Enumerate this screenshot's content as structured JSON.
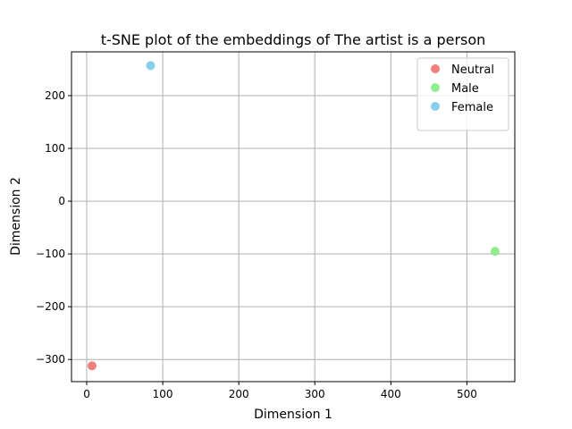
{
  "chart_data": {
    "type": "scatter",
    "title": "t-SNE plot of the embeddings of The artist is a person",
    "xlabel": "Dimension 1",
    "ylabel": "Dimension 2",
    "xlim": [
      -20,
      563
    ],
    "ylim": [
      -342,
      283
    ],
    "xticks": [
      0,
      100,
      200,
      300,
      400,
      500
    ],
    "yticks": [
      -300,
      -200,
      -100,
      0,
      100,
      200
    ],
    "grid": true,
    "legend_position": "top-right",
    "series": [
      {
        "name": "Neutral",
        "color": "#f08080",
        "points": [
          {
            "x": 7,
            "y": -312
          }
        ]
      },
      {
        "name": "Male",
        "color": "#90ee90",
        "points": [
          {
            "x": 537,
            "y": -95
          }
        ]
      },
      {
        "name": "Female",
        "color": "#87ceeb",
        "points": [
          {
            "x": 84,
            "y": 257
          }
        ]
      }
    ]
  }
}
